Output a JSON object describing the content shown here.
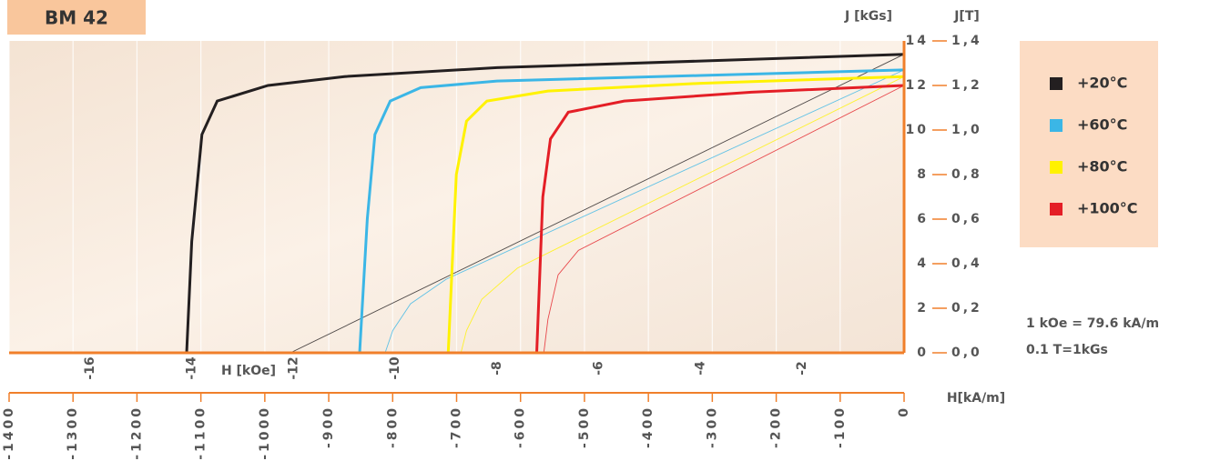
{
  "chart_data": {
    "type": "line",
    "title": "BM 42",
    "y_label": "J [kGs]",
    "y2_label": "J[T]",
    "x_label": "H [kOe]",
    "x2_label": "H[kA/m]",
    "xlim": [
      -17.59,
      0
    ],
    "xticks": [
      -16,
      -14,
      -12,
      -10,
      -8,
      -6,
      -4,
      -2
    ],
    "x2lim": [
      -1400,
      0
    ],
    "x2ticks": [
      -1400,
      -1300,
      -1200,
      -1100,
      -1000,
      -900,
      -800,
      -700,
      -600,
      -500,
      -400,
      -300,
      -200,
      -100,
      0
    ],
    "ylim": [
      0,
      14
    ],
    "yticks": [
      0,
      2,
      4,
      6,
      8,
      10,
      12,
      14
    ],
    "y2lim": [
      0,
      1.4
    ],
    "y2ticks": [
      {
        "value": 0,
        "label": "0,0"
      },
      {
        "value": 0.2,
        "label": "0,2"
      },
      {
        "value": 0.4,
        "label": "0,4"
      },
      {
        "value": 0.6,
        "label": "0,6"
      },
      {
        "value": 0.8,
        "label": "0,8"
      },
      {
        "value": 1.0,
        "label": "1,0"
      },
      {
        "value": 1.2,
        "label": "1,2"
      },
      {
        "value": 1.4,
        "label": "1,4"
      }
    ],
    "notes": [
      "1 kOe = 79.6 kA/m",
      "0.1 T=1kGs"
    ],
    "grid": true,
    "series": [
      {
        "name": "+20°C",
        "color": "#231f20",
        "x": [
          0,
          -4,
          -8,
          -11,
          -12.5,
          -13.5,
          -13.8,
          -14.0,
          -14.1
        ],
        "values": [
          13.4,
          13.1,
          12.8,
          12.4,
          12.0,
          11.3,
          9.8,
          5.0,
          0
        ],
        "b_x": [
          0,
          -12.06
        ],
        "b_values": [
          13.4,
          0
        ]
      },
      {
        "name": "+60°C",
        "color": "#3bb6e6",
        "x": [
          0,
          -4,
          -8,
          -9.5,
          -10.1,
          -10.4,
          -10.55,
          -10.7
        ],
        "values": [
          12.7,
          12.45,
          12.2,
          11.9,
          11.3,
          9.8,
          6.0,
          0
        ],
        "b_x": [
          0,
          -9.0,
          -9.7,
          -10.05,
          -10.2
        ],
        "b_values": [
          12.7,
          3.3,
          2.2,
          1.0,
          0
        ]
      },
      {
        "name": "+80°C",
        "color": "#fff200",
        "x": [
          0,
          -4,
          -7,
          -8.2,
          -8.6,
          -8.8,
          -8.96
        ],
        "values": [
          12.4,
          12.1,
          11.75,
          11.3,
          10.4,
          8.0,
          0
        ],
        "b_x": [
          0,
          -7.6,
          -8.3,
          -8.6,
          -8.71
        ],
        "b_values": [
          12.4,
          3.8,
          2.4,
          1.0,
          0
        ]
      },
      {
        "name": "+100°C",
        "color": "#e41e26",
        "x": [
          0,
          -3,
          -5.5,
          -6.6,
          -6.95,
          -7.1,
          -7.22
        ],
        "values": [
          12.0,
          11.7,
          11.3,
          10.8,
          9.6,
          7.0,
          0
        ],
        "b_x": [
          0,
          -6.4,
          -6.8,
          -7.0,
          -7.08
        ],
        "b_values": [
          12.0,
          4.6,
          3.5,
          1.5,
          0
        ]
      }
    ]
  }
}
